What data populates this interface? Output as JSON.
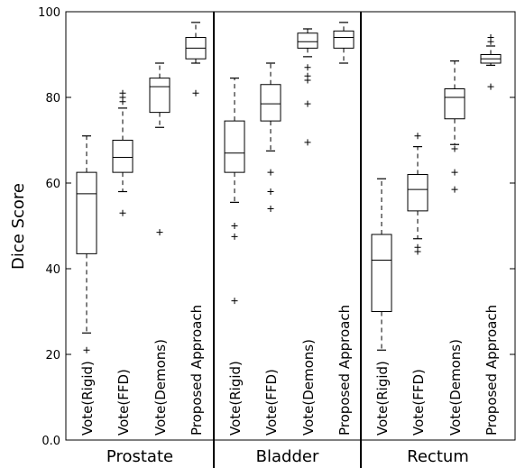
{
  "chart_data": {
    "type": "box",
    "ylabel": "Dice Score",
    "ylim": [
      0,
      100
    ],
    "yticks": [
      0,
      20,
      40,
      60,
      80,
      100
    ],
    "ytick_labels": [
      "0.0",
      "20",
      "40",
      "60",
      "80",
      "100"
    ],
    "grid": false,
    "groups": [
      {
        "name": "Prostate",
        "boxes": [
          {
            "method": "Vote(Rigid)",
            "whislo": 25,
            "q1": 43.5,
            "med": 57.5,
            "q3": 62.5,
            "whishi": 71,
            "fliers": [
              21
            ]
          },
          {
            "method": "Vote(FFD)",
            "whislo": 58,
            "q1": 62.5,
            "med": 66,
            "q3": 70,
            "whishi": 77.5,
            "fliers": [
              53,
              79,
              80,
              81
            ]
          },
          {
            "method": "Vote(Demons)",
            "whislo": 73,
            "q1": 76.5,
            "med": 82.5,
            "q3": 84.5,
            "whishi": 88,
            "fliers": [
              48.5
            ]
          },
          {
            "method": "Proposed Approach",
            "whislo": 88,
            "q1": 89,
            "med": 91.5,
            "q3": 94,
            "whishi": 97.5,
            "fliers": [
              81
            ]
          }
        ]
      },
      {
        "name": "Bladder",
        "boxes": [
          {
            "method": "Vote(Rigid)",
            "whislo": 55.5,
            "q1": 62.5,
            "med": 67,
            "q3": 74.5,
            "whishi": 84.5,
            "fliers": [
              32.5,
              47.5,
              50
            ]
          },
          {
            "method": "Vote(FFD)",
            "whislo": 67.5,
            "q1": 74.5,
            "med": 78.5,
            "q3": 83,
            "whishi": 88,
            "fliers": [
              54,
              58,
              62.5
            ]
          },
          {
            "method": "Vote(Demons)",
            "whislo": 89.5,
            "q1": 91.5,
            "med": 93,
            "q3": 95,
            "whishi": 96,
            "fliers": [
              69.5,
              78.5,
              84,
              85,
              87
            ]
          },
          {
            "method": "Proposed Approach",
            "whislo": 88,
            "q1": 91.5,
            "med": 94,
            "q3": 95.5,
            "whishi": 97.5,
            "fliers": []
          }
        ]
      },
      {
        "name": "Rectum",
        "boxes": [
          {
            "method": "Vote(Rigid)",
            "whislo": 21,
            "q1": 30,
            "med": 42,
            "q3": 48,
            "whishi": 61,
            "fliers": []
          },
          {
            "method": "Vote(FFD)",
            "whislo": 47,
            "q1": 53.5,
            "med": 58.5,
            "q3": 62,
            "whishi": 68.5,
            "fliers": [
              44,
              45,
              71
            ]
          },
          {
            "method": "Vote(Demons)",
            "whislo": 69,
            "q1": 75,
            "med": 80,
            "q3": 82,
            "whishi": 88.5,
            "fliers": [
              58.5,
              62.5,
              68
            ]
          },
          {
            "method": "Proposed Approach",
            "whislo": 87.5,
            "q1": 88,
            "med": 89,
            "q3": 90,
            "whishi": 92,
            "fliers": [
              82.5,
              93,
              94
            ]
          }
        ]
      }
    ]
  }
}
